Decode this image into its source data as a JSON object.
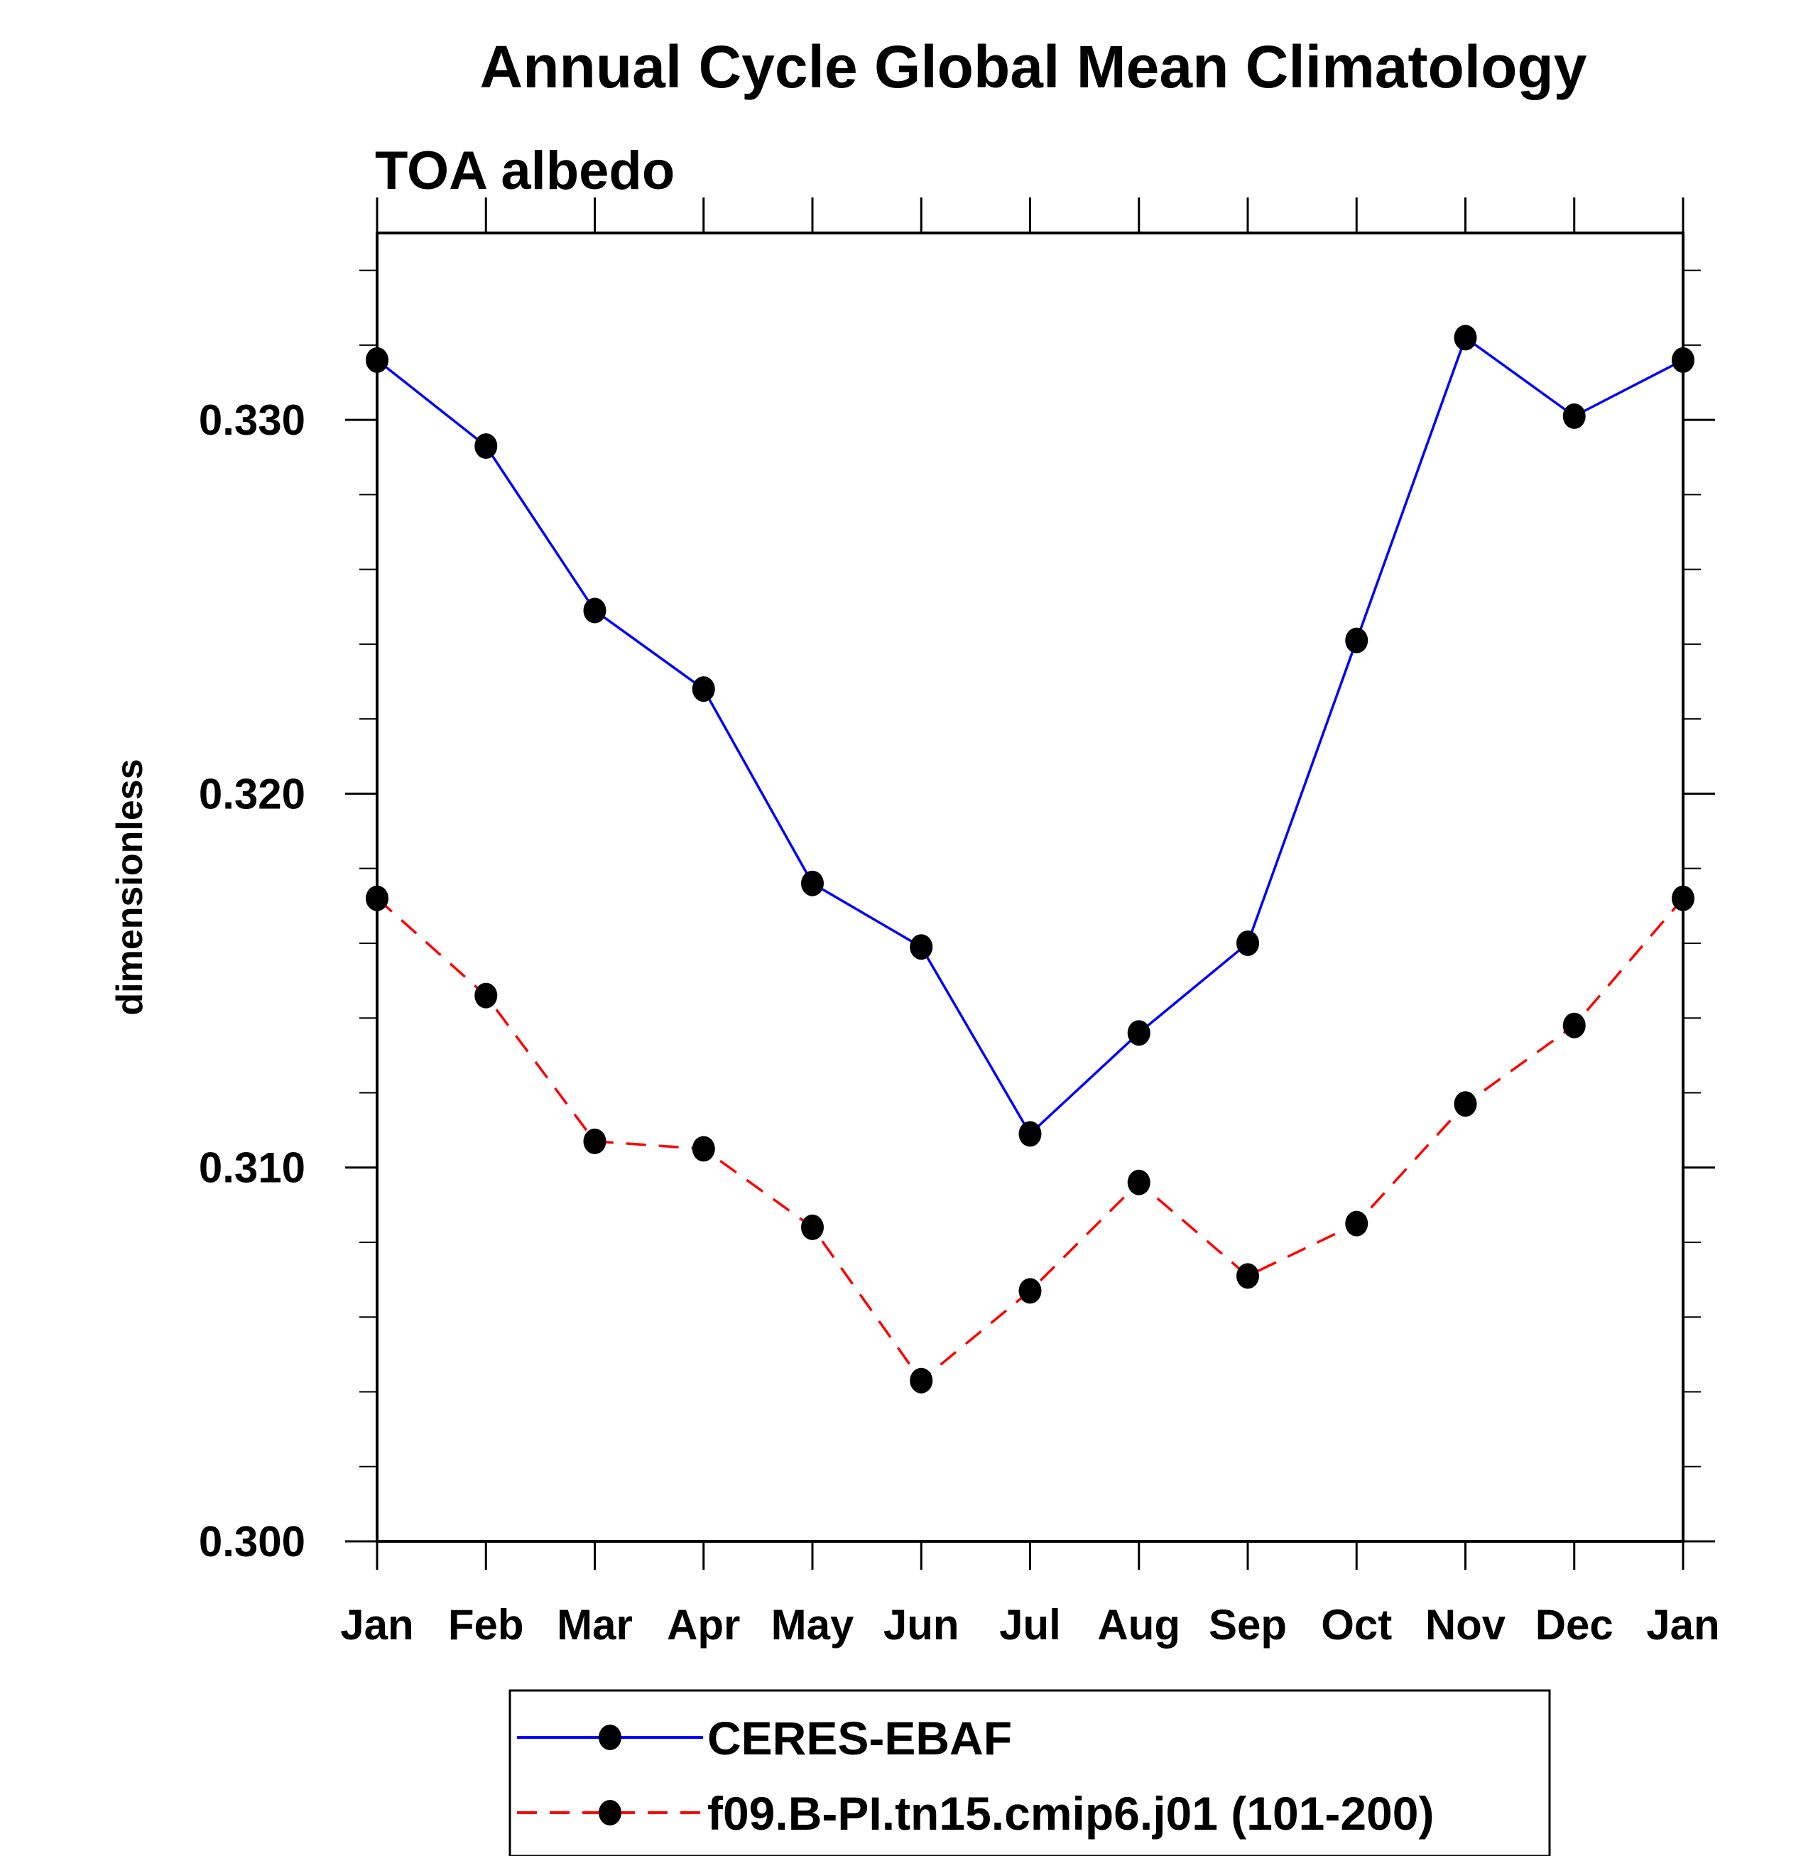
{
  "chart_data": {
    "type": "line",
    "title": "Annual Cycle Global Mean Climatology",
    "subtitle": "TOA albedo",
    "xlabel": "",
    "ylabel": "dimensionless",
    "categories": [
      "Jan",
      "Feb",
      "Mar",
      "Apr",
      "May",
      "Jun",
      "Jul",
      "Aug",
      "Sep",
      "Oct",
      "Nov",
      "Dec",
      "Jan"
    ],
    "ylim": [
      0.3,
      0.335
    ],
    "yticks": [
      0.3,
      0.31,
      0.32,
      0.33
    ],
    "ytick_labels": [
      "0.300",
      "0.310",
      "0.320",
      "0.330"
    ],
    "yminor_step": 0.002,
    "grid": false,
    "legend_placement": "bottom-center",
    "series": [
      {
        "name": "CERES-EBAF",
        "color": "#0000ff",
        "dash": "solid",
        "marker": "filled-circle",
        "values": [
          0.3316,
          0.3293,
          0.3249,
          0.3228,
          0.3176,
          0.3159,
          0.3109,
          0.3136,
          0.316,
          0.3241,
          0.3322,
          0.3301,
          0.3316
        ]
      },
      {
        "name": "f09.B-PI.tn15.cmip6.j01 (101-200)",
        "color": "#ff0000",
        "dash": "dashed",
        "marker": "filled-circle",
        "values": [
          0.3172,
          0.3146,
          0.3107,
          0.3105,
          0.3084,
          0.3043,
          0.3067,
          0.3096,
          0.3071,
          0.3085,
          0.3117,
          0.3138,
          0.3172
        ]
      }
    ]
  }
}
